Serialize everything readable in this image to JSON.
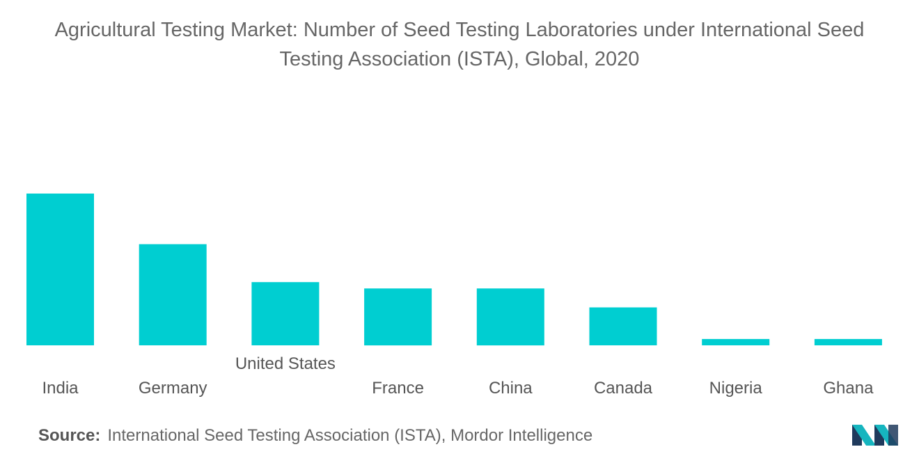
{
  "title": {
    "line1": "Agricultural Testing Market: Number of Seed Testing Laboratories under International Seed",
    "line2": "Testing Association (ISTA), Global, 2020"
  },
  "source": {
    "label": "Source:",
    "text": "International Seed Testing Association (ISTA), Mordor Intelligence"
  },
  "colors": {
    "bar": "#00CED1",
    "text": "#555555",
    "logo_dark": "#1f3a5c",
    "logo_teal": "#16b5bf"
  },
  "chart_data": {
    "type": "bar",
    "title": "Agricultural Testing Market: Number of Seed Testing Laboratories under International Seed Testing Association (ISTA), Global, 2020",
    "categories": [
      "India",
      "Germany",
      "United States",
      "France",
      "China",
      "Canada",
      "Nigeria",
      "Ghana"
    ],
    "values": [
      24,
      16,
      10,
      9,
      9,
      6,
      1,
      1
    ],
    "ylim": [
      0,
      24
    ],
    "grid": false,
    "legend": "none",
    "xlabel": "",
    "ylabel": ""
  }
}
